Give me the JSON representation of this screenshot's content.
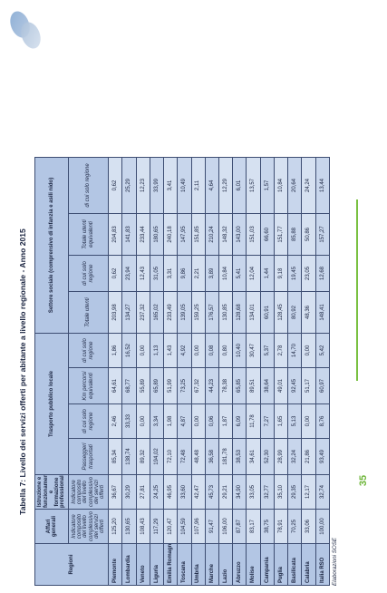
{
  "title": "Tabella 7: Livello dei servizi offerti per abitante a livello regionale - Anno 2015",
  "source": "Elaborazioni SOSE",
  "page_number": "35",
  "headers": {
    "regioni": "Regioni",
    "affari_generali": "Affari generali",
    "istruzione": "Istruzione e funzionamento e formazione professionale",
    "trasporto": "Trasporto pubblico locale",
    "sociale": "Settore sociale (comprensivo di infanzia e asili nido)",
    "sub_ag": "Indicatore composito del livello complessivo dei servizi offerti",
    "sub_istr": "Indicatore composito del livello complessivo dei servizi offerti",
    "sub_pass": "Passeggeri trasportati",
    "sub_pass_reg": "di cui solo regione",
    "sub_km": "Km percorsi equivalenti",
    "sub_km_reg": "di cui solo regione",
    "sub_ut": "Totale utenti",
    "sub_ut_reg": "di cui solo regione",
    "sub_ueq": "Totale utenti equivalenti",
    "sub_ueq_reg": "di cui solo regione"
  },
  "rows": [
    [
      "Piemonte",
      "125,20",
      "36,67",
      "85,34",
      "2,46",
      "64,61",
      "1,86",
      "203,98",
      "0,62",
      "204,83",
      "0,62"
    ],
    [
      "Lombardia",
      "130,65",
      "30,29",
      "138,74",
      "33,33",
      "68,77",
      "16,52",
      "134,27",
      "23,94",
      "141,83",
      "25,29"
    ],
    [
      "Veneto",
      "108,43",
      "27,81",
      "89,32",
      "0,00",
      "55,89",
      "0,00",
      "237,32",
      "12,43",
      "233,44",
      "12,23"
    ],
    [
      "Liguria",
      "117,29",
      "24,25",
      "194,02",
      "3,34",
      "65,89",
      "1,13",
      "165,02",
      "31,05",
      "180,65",
      "33,99"
    ],
    [
      "Emilia Romagna",
      "120,47",
      "46,95",
      "72,10",
      "1,98",
      "51,99",
      "1,43",
      "233,49",
      "3,31",
      "240,18",
      "3,41"
    ],
    [
      "Toscana",
      "104,59",
      "33,60",
      "72,48",
      "4,87",
      "73,25",
      "4,92",
      "139,05",
      "9,86",
      "147,95",
      "10,49"
    ],
    [
      "Umbria",
      "107,96",
      "42,47",
      "48,48",
      "0,00",
      "67,32",
      "0,00",
      "159,25",
      "2,21",
      "151,85",
      "2,11"
    ],
    [
      "Marche",
      "91,47",
      "45,73",
      "36,58",
      "0,06",
      "44,23",
      "0,08",
      "176,57",
      "3,89",
      "210,24",
      "4,64"
    ],
    [
      "Lazio",
      "106,00",
      "29,21",
      "181,78",
      "1,87",
      "78,38",
      "0,80",
      "130,85",
      "10,84",
      "148,32",
      "12,29"
    ],
    [
      "Abruzzo",
      "87,87",
      "34,90",
      "38,53",
      "6,09",
      "65,85",
      "10,40",
      "128,68",
      "5,41",
      "143,00",
      "6,01"
    ],
    [
      "Molise",
      "83,17",
      "33,05",
      "34,61",
      "11,78",
      "89,51",
      "30,47",
      "134,01",
      "12,04",
      "151,03",
      "13,57"
    ],
    [
      "Campania",
      "38,75",
      "32,77",
      "52,30",
      "7,27",
      "38,64",
      "5,37",
      "60,91",
      "1,44",
      "66,60",
      "1,57"
    ],
    [
      "Puglia",
      "78,91",
      "35,10",
      "28,99",
      "1,65",
      "49,01",
      "2,78",
      "128,45",
      "9,18",
      "151,77",
      "10,84"
    ],
    [
      "Basilicata",
      "70,25",
      "29,35",
      "32,24",
      "5,13",
      "92,45",
      "14,70",
      "80,92",
      "19,45",
      "85,88",
      "20,64"
    ],
    [
      "Calabria",
      "33,06",
      "12,17",
      "21,86",
      "0,00",
      "51,17",
      "0,00",
      "48,36",
      "23,05",
      "50,86",
      "24,24"
    ],
    [
      "Italia RSO",
      "100,00",
      "32,74",
      "93,49",
      "8,76",
      "60,97",
      "5,42",
      "148,41",
      "12,68",
      "157,27",
      "13,44"
    ]
  ]
}
